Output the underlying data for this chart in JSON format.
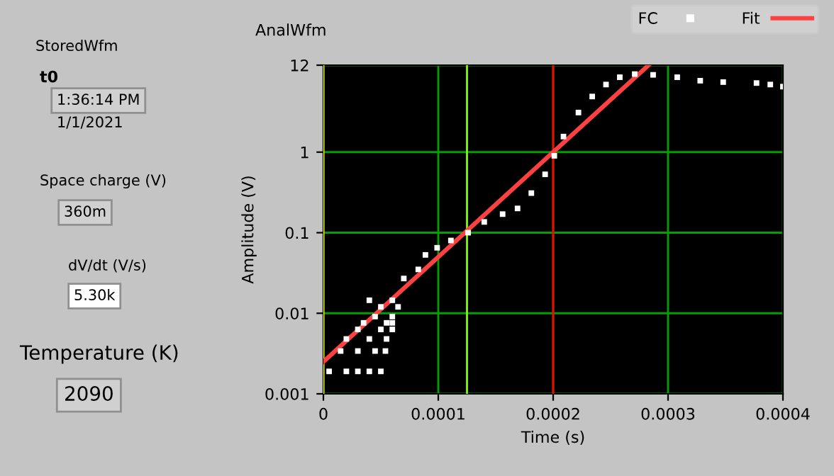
{
  "chart_data": {
    "type": "scatter",
    "title": "AnalWfm",
    "xlabel": "Time (s)",
    "ylabel": "Amplitude (V)",
    "log": "y",
    "xlim": [
      0,
      0.0004
    ],
    "ylim": [
      0.001,
      12
    ],
    "xticks": [
      0,
      0.0001,
      0.0002,
      0.0003,
      0.0004
    ],
    "yticks": [
      0.001,
      0.01,
      0.1,
      1,
      12
    ],
    "grid": true,
    "legend": "top right",
    "series": [
      {
        "name": "FC",
        "marker": "square",
        "color": "#ffffff",
        "x": [
          5e-06,
          2e-05,
          3e-05,
          4e-05,
          5e-05,
          1.5e-05,
          3e-05,
          4.5e-05,
          5.4e-05,
          2e-05,
          4e-05,
          5.5e-05,
          3e-05,
          5e-05,
          6e-05,
          3.5e-05,
          5.5e-05,
          6e-05,
          4.5e-05,
          6e-05,
          5e-05,
          6.5e-05,
          4e-05,
          6e-05,
          7e-05,
          8.26e-05,
          8.88e-05,
          9.9e-05,
          0.000111,
          0.000126,
          0.00014,
          0.000156,
          0.000169,
          0.000181,
          0.000193,
          0.000201,
          0.000209,
          0.000222,
          0.000234,
          0.000246,
          0.000258,
          0.000271,
          0.000287,
          0.000308,
          0.000328,
          0.000348,
          0.000377,
          0.000389,
          0.0004
        ],
        "values": [
          0.0019,
          0.0019,
          0.0019,
          0.0019,
          0.0019,
          0.0034,
          0.0034,
          0.0034,
          0.0034,
          0.0048,
          0.0048,
          0.0048,
          0.0063,
          0.0063,
          0.0063,
          0.0076,
          0.0076,
          0.0076,
          0.0091,
          0.0091,
          0.012,
          0.012,
          0.0145,
          0.0145,
          0.027,
          0.035,
          0.053,
          0.065,
          0.08,
          0.1,
          0.136,
          0.17,
          0.2,
          0.31,
          0.53,
          0.9,
          1.56,
          3.1,
          4.9,
          6.9,
          8.5,
          9.3,
          9.1,
          8.5,
          7.7,
          7.4,
          7.2,
          6.9,
          6.5
        ]
      },
      {
        "name": "Fit",
        "type": "line",
        "color": "#ff4040",
        "x": [
          0,
          0.0001,
          0.0002,
          0.000283
        ],
        "values": [
          0.0025,
          0.05,
          1,
          12
        ]
      }
    ],
    "ref_lines": [
      {
        "axis": "x",
        "value": 0,
        "color": "#ffff00"
      },
      {
        "axis": "x",
        "value": 0.000125,
        "color": "#80ff00"
      },
      {
        "axis": "x",
        "value": 0.0002,
        "color": "#ff0000"
      }
    ],
    "annotations": [
      "StoredWfm",
      "t0",
      "1:36:14 PM",
      "1/1/2021",
      "Space charge (V)",
      "360m",
      "dV/dt (V/s)",
      "5.30k",
      "Temperature (K)",
      "2090"
    ]
  }
}
